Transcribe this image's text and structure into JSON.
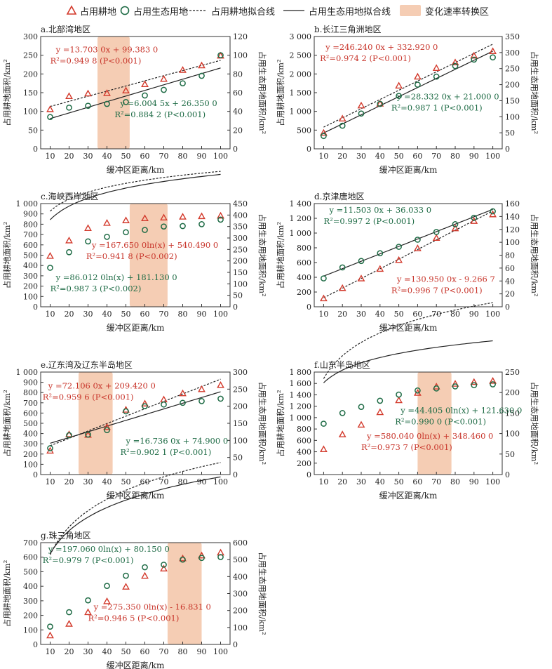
{
  "legend": {
    "cropland_marker": "占用耕地",
    "eco_marker": "占用生态用地",
    "cropland_fit": "占用耕地拟合线",
    "eco_fit": "占用生态用地拟合线",
    "transition_zone": "变化速率转换区"
  },
  "colors": {
    "cropland": "#d33a2c",
    "eco": "#1e6b45",
    "zone": "#f5cdb4",
    "eq_cropland": "#c8352b",
    "eq_eco": "#1e6b45"
  },
  "chart_data": [
    {
      "id": "a",
      "title": "a.北部湾地区",
      "type": "scatter",
      "xlabel": "缓冲区距离/km",
      "ylabel_left": "占用耕地面积/km²",
      "ylabel_right": "占用生态用地面积/km²",
      "x": [
        10,
        20,
        30,
        40,
        50,
        60,
        70,
        80,
        90,
        100
      ],
      "xlim": [
        5,
        105
      ],
      "xticks": [
        "10",
        "20",
        "30",
        "40",
        "50",
        "60",
        "70",
        "80",
        "90",
        "100"
      ],
      "ylim_left": [
        0,
        300
      ],
      "yticks_left": [
        "0",
        "50",
        "100",
        "150",
        "200",
        "250",
        "300"
      ],
      "ylim_right": [
        0,
        120
      ],
      "yticks_right": [
        "0",
        "20",
        "40",
        "60",
        "80",
        "100",
        "120"
      ],
      "transition_zone": [
        35,
        52
      ],
      "series": [
        {
          "name": "占用耕地",
          "axis": "left",
          "values": [
            105,
            140,
            147,
            148,
            155,
            172,
            186,
            210,
            222,
            248
          ],
          "fit": {
            "kind": "linear",
            "a": 13.703,
            "b": 99.383
          }
        },
        {
          "name": "占用生态用地",
          "axis": "right",
          "values": [
            34,
            44,
            46,
            48,
            50,
            57,
            63,
            70,
            78,
            100
          ],
          "fit": {
            "kind": "linear",
            "a": 6.0045,
            "b": 26.35
          }
        }
      ],
      "equations": {
        "cropland": {
          "eq": "y =13.703 0x + 99.383 0",
          "r2": "R²=0.949 8 (P<0.001)"
        },
        "eco": {
          "eq": "y =6.004 5x + 26.350 0",
          "r2": "R²=0.884 2 (P<0.001)"
        }
      }
    },
    {
      "id": "b",
      "title": "b.长江三角洲地区",
      "type": "scatter",
      "xlabel": "缓冲区距离/km",
      "ylabel_left": "占用耕地面积/km²",
      "ylabel_right": "占用生态用地面积/km²",
      "x": [
        10,
        20,
        30,
        40,
        50,
        60,
        70,
        80,
        90,
        100
      ],
      "xlim": [
        5,
        105
      ],
      "xticks": [
        "10",
        "20",
        "30",
        "40",
        "50",
        "60",
        "70",
        "80",
        "90",
        "100"
      ],
      "ylim_left": [
        0,
        3000
      ],
      "yticks_left": [
        "0",
        "500",
        "1 000",
        "1 500",
        "2 000",
        "2 500",
        "3 000"
      ],
      "ylim_right": [
        0,
        350
      ],
      "yticks_right": [
        "0",
        "50",
        "100",
        "150",
        "200",
        "250",
        "300",
        "350"
      ],
      "transition_zone": null,
      "series": [
        {
          "name": "占用耕地",
          "axis": "left",
          "values": [
            420,
            800,
            1150,
            1200,
            1680,
            1920,
            2150,
            2300,
            2480,
            2600
          ],
          "fit": {
            "kind": "linear",
            "a": 246.24,
            "b": 332.92
          }
        },
        {
          "name": "占用生态用地",
          "axis": "right",
          "values": [
            40,
            72,
            110,
            140,
            165,
            200,
            225,
            258,
            278,
            285
          ],
          "fit": {
            "kind": "linear",
            "a": 28.332,
            "b": 21.0
          }
        }
      ],
      "equations": {
        "cropland": {
          "eq": "y =246.240 0x + 332.920 0",
          "r2": "R²=0.974 2 (P<0.001)"
        },
        "eco": {
          "eq": "y =28.332 0x + 21.000 0",
          "r2": "R²=0.987 1 (P<0.001)"
        }
      }
    },
    {
      "id": "c",
      "title": "c.海峡西岸地区",
      "type": "scatter",
      "xlabel": "缓冲区距离/km",
      "ylabel_left": "占用耕地面积/km²",
      "ylabel_right": "占用生态用地面积/km²",
      "x": [
        10,
        20,
        30,
        40,
        50,
        60,
        70,
        80,
        90,
        100
      ],
      "xlim": [
        5,
        105
      ],
      "xticks": [
        "10",
        "20",
        "30",
        "40",
        "50",
        "60",
        "70",
        "80",
        "90",
        "100"
      ],
      "ylim_left": [
        0,
        1000
      ],
      "yticks_left": [
        "0",
        "100",
        "200",
        "300",
        "400",
        "500",
        "600",
        "700",
        "800",
        "900",
        "1 000"
      ],
      "ylim_right": [
        0,
        450
      ],
      "yticks_right": [
        "0",
        "50",
        "100",
        "150",
        "200",
        "250",
        "300",
        "350",
        "400",
        "450"
      ],
      "transition_zone": [
        52,
        72
      ],
      "series": [
        {
          "name": "占用耕地",
          "axis": "left",
          "values": [
            490,
            640,
            760,
            810,
            835,
            855,
            862,
            870,
            875,
            880
          ],
          "fit": {
            "kind": "log",
            "a": 167.65,
            "b": 540.49
          }
        },
        {
          "name": "占用生态用地",
          "axis": "right",
          "values": [
            170,
            238,
            285,
            305,
            325,
            335,
            350,
            352,
            360,
            380
          ],
          "fit": {
            "kind": "log",
            "a": 86.012,
            "b": 181.13
          }
        }
      ],
      "equations": {
        "cropland": {
          "eq": "y =167.650 0ln(x) + 540.490 0",
          "r2": "R²=0.941 8 (P<0.002)"
        },
        "eco": {
          "eq": "y =86.012 0ln(x) + 181.130 0",
          "r2": "R²=0.987 3 (P<0.002)"
        }
      }
    },
    {
      "id": "d",
      "title": "d.京津唐地区",
      "type": "scatter",
      "xlabel": "缓冲区距离/km",
      "ylabel_left": "占用耕地面积/km²",
      "ylabel_right": "占用生态用地面积/km²",
      "x": [
        10,
        20,
        30,
        40,
        50,
        60,
        70,
        80,
        90,
        100
      ],
      "xlim": [
        5,
        105
      ],
      "xticks": [
        "10",
        "20",
        "30",
        "40",
        "50",
        "60",
        "70",
        "80",
        "90",
        "100"
      ],
      "ylim_left": [
        0,
        1400
      ],
      "yticks_left": [
        "0",
        "200",
        "400",
        "600",
        "800",
        "1 000",
        "1 200",
        "1 400"
      ],
      "ylim_right": [
        0,
        160
      ],
      "yticks_right": [
        "0",
        "20",
        "40",
        "60",
        "80",
        "100",
        "120",
        "140",
        "160"
      ],
      "transition_zone": null,
      "series": [
        {
          "name": "占用耕地",
          "axis": "left",
          "values": [
            110,
            250,
            380,
            510,
            630,
            790,
            930,
            1060,
            1160,
            1250
          ],
          "fit": {
            "kind": "linear",
            "a": 130.95,
            "b": -9.2667
          }
        },
        {
          "name": "占用生态用地",
          "axis": "right",
          "values": [
            44,
            61,
            71,
            83,
            93,
            104,
            116,
            128,
            138,
            148
          ],
          "fit": {
            "kind": "linear",
            "a": 11.503,
            "b": 36.033
          }
        }
      ],
      "equations": {
        "cropland": {
          "eq": "y =130.950 0x - 9.266 7",
          "r2": "R²=0.996 7 (P<0.001)"
        },
        "eco": {
          "eq": "y =11.503 0x + 36.033 0",
          "r2": "R²=0.997 2 (P<0.001)"
        }
      }
    },
    {
      "id": "e",
      "title": "e.辽东湾及辽东半岛地区",
      "type": "scatter",
      "xlabel": "缓冲区距离/km",
      "ylabel_left": "占用耕地面积/km²",
      "ylabel_right": "占用生态用地面积/km²",
      "x": [
        10,
        20,
        30,
        40,
        50,
        60,
        70,
        80,
        90,
        100
      ],
      "xlim": [
        5,
        105
      ],
      "xticks": [
        "10",
        "20",
        "30",
        "40",
        "50",
        "60",
        "70",
        "80",
        "90",
        "100"
      ],
      "ylim_left": [
        0,
        1000
      ],
      "yticks_left": [
        "0",
        "100",
        "200",
        "300",
        "400",
        "500",
        "600",
        "700",
        "800",
        "900",
        "1 000"
      ],
      "ylim_right": [
        0,
        300
      ],
      "yticks_right": [
        "0",
        "50",
        "100",
        "150",
        "200",
        "250",
        "300"
      ],
      "transition_zone": [
        25,
        43
      ],
      "series": [
        {
          "name": "占用耕地",
          "axis": "left",
          "values": [
            230,
            390,
            385,
            460,
            630,
            690,
            730,
            790,
            830,
            870
          ],
          "fit": {
            "kind": "linear",
            "a": 72.106,
            "b": 209.42
          }
        },
        {
          "name": "占用生态用地",
          "axis": "right",
          "values": [
            77,
            115,
            117,
            130,
            185,
            200,
            205,
            210,
            215,
            222
          ],
          "fit": {
            "kind": "linear",
            "a": 16.736,
            "b": 74.9
          }
        }
      ],
      "equations": {
        "cropland": {
          "eq": "y =72.106 0x + 209.420 0",
          "r2": "R²=0.959 6 (P<0.001)"
        },
        "eco": {
          "eq": "y =16.736 0x + 74.900 0",
          "r2": "R²=0.902 1 (P<0.001)"
        }
      }
    },
    {
      "id": "f",
      "title": "f.山东半岛地区",
      "type": "scatter",
      "xlabel": "缓冲区距离/km",
      "ylabel_left": "占用耕地面积/km²",
      "ylabel_right": "占用生态用地面积/km²",
      "x": [
        10,
        20,
        30,
        40,
        50,
        60,
        70,
        80,
        90,
        100
      ],
      "xlim": [
        5,
        105
      ],
      "xticks": [
        "10",
        "20",
        "30",
        "40",
        "50",
        "60",
        "70",
        "80",
        "90",
        "100"
      ],
      "ylim_left": [
        0,
        1800
      ],
      "yticks_left": [
        "0",
        "200",
        "400",
        "600",
        "800",
        "1 000",
        "1 200",
        "1 400",
        "1 600",
        "1 800"
      ],
      "ylim_right": [
        0,
        250
      ],
      "yticks_right": [
        "0",
        "50",
        "100",
        "150",
        "200",
        "250"
      ],
      "transition_zone": [
        60,
        78
      ],
      "series": [
        {
          "name": "占用耕地",
          "axis": "left",
          "values": [
            440,
            700,
            870,
            1090,
            1300,
            1430,
            1540,
            1590,
            1620,
            1640
          ],
          "fit": {
            "kind": "log",
            "a": 580.04,
            "b": 348.46
          }
        },
        {
          "name": "占用生态用地",
          "axis": "right",
          "values": [
            124,
            150,
            165,
            180,
            195,
            205,
            210,
            215,
            218,
            220
          ],
          "fit": {
            "kind": "log",
            "a": 44.405,
            "b": 121.63
          }
        }
      ],
      "equations": {
        "cropland": {
          "eq": "y =580.040 0ln(x) + 348.460 0",
          "r2": "R²=0.973 7 (P<0.001)"
        },
        "eco": {
          "eq": "y =44.405 0ln(x) + 121.630 0",
          "r2": "R²=0.990 0 (P<0.001)"
        }
      }
    },
    {
      "id": "g",
      "title": "g.珠三角地区",
      "type": "scatter",
      "xlabel": "缓冲区距离/km",
      "ylabel_left": "占用耕地面积/km²",
      "ylabel_right": "占用生态用地面积/km²",
      "x": [
        10,
        20,
        30,
        40,
        50,
        60,
        70,
        80,
        90,
        100
      ],
      "xlim": [
        5,
        105
      ],
      "xticks": [
        "10",
        "20",
        "30",
        "40",
        "50",
        "60",
        "70",
        "80",
        "90",
        "100"
      ],
      "ylim_left": [
        0,
        700
      ],
      "yticks_left": [
        "0",
        "100",
        "200",
        "300",
        "400",
        "500",
        "600",
        "700"
      ],
      "ylim_right": [
        0,
        600
      ],
      "yticks_right": [
        "0",
        "100",
        "200",
        "300",
        "400",
        "500",
        "600"
      ],
      "transition_zone": [
        72,
        90
      ],
      "series": [
        {
          "name": "占用耕地",
          "axis": "left",
          "values": [
            60,
            140,
            220,
            295,
            395,
            470,
            520,
            590,
            610,
            630
          ],
          "fit": {
            "kind": "log",
            "a": 275.35,
            "b": -16.831
          }
        },
        {
          "name": "占用生态用地",
          "axis": "right",
          "values": [
            105,
            190,
            260,
            345,
            405,
            455,
            470,
            500,
            510,
            515
          ],
          "fit": {
            "kind": "log",
            "a": 197.06,
            "b": 80.15
          }
        }
      ],
      "equations": {
        "cropland": {
          "eq": "y =275.350 0ln(x) - 16.831 0",
          "r2": "R²=0.946 5 (P<0.001)"
        },
        "eco": {
          "eq": "y =197.060 0ln(x) + 80.150 0",
          "r2": "R²=0.979 7 (P<0.001)"
        }
      }
    }
  ]
}
